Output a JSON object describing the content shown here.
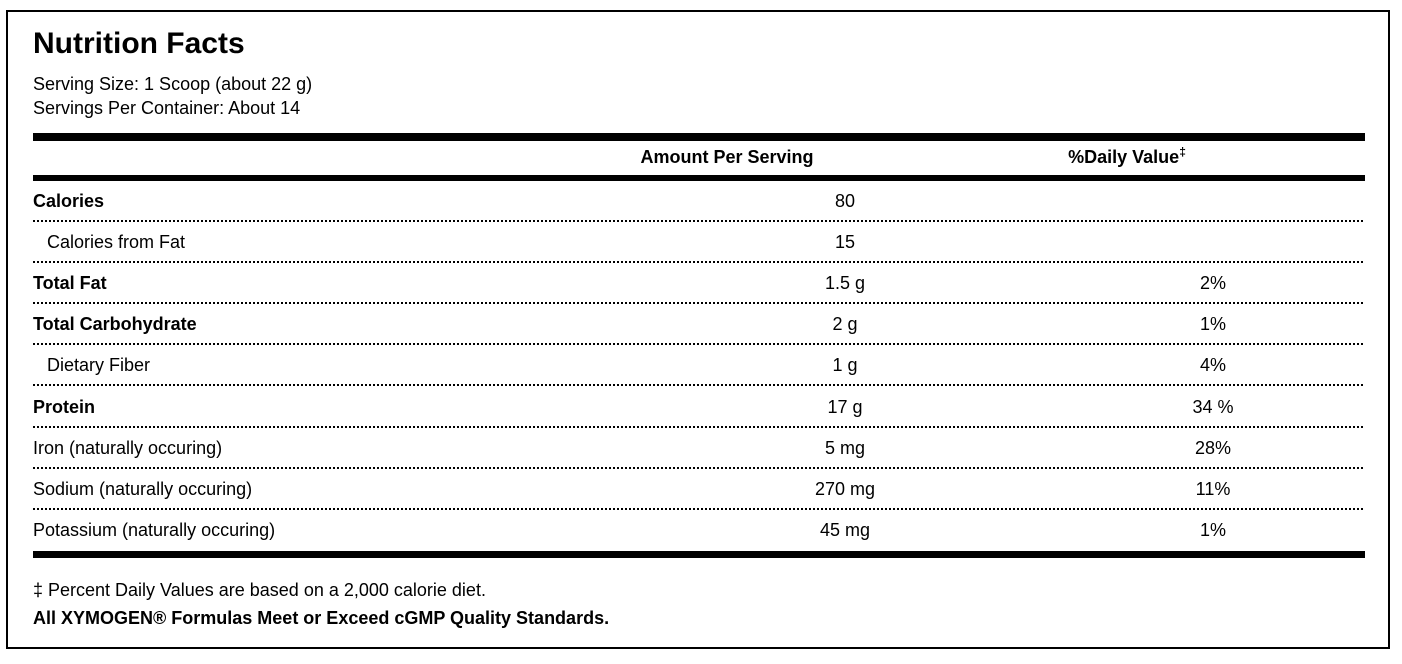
{
  "label": {
    "title": "Nutrition Facts",
    "serving_size": "Serving Size: 1 Scoop (about 22 g)",
    "servings_per_container": "Servings Per Container: About 14",
    "columns": {
      "amount_header": "Amount Per Serving",
      "daily_value_header": "%Daily Value",
      "daily_value_mark": "‡"
    },
    "rows": [
      {
        "name": "Calories",
        "amount": "80",
        "dv": "",
        "bold": true,
        "indent": false
      },
      {
        "name": "Calories from Fat",
        "amount": "15",
        "dv": "",
        "bold": false,
        "indent": true
      },
      {
        "name": "Total Fat",
        "amount": "1.5 g",
        "dv": "2%",
        "bold": true,
        "indent": false
      },
      {
        "name": "Total Carbohydrate",
        "amount": "2 g",
        "dv": "1%",
        "bold": true,
        "indent": false
      },
      {
        "name": "Dietary Fiber",
        "amount": "1 g",
        "dv": "4%",
        "bold": false,
        "indent": true
      },
      {
        "name": "Protein",
        "amount": "17 g",
        "dv": "34 %",
        "bold": true,
        "indent": false
      },
      {
        "name": "Iron (naturally occuring)",
        "amount": "5 mg",
        "dv": "28%",
        "bold": false,
        "indent": false
      },
      {
        "name": "Sodium (naturally occuring)",
        "amount": "270 mg",
        "dv": "11%",
        "bold": false,
        "indent": false
      },
      {
        "name": "Potassium (naturally occuring)",
        "amount": "45 mg",
        "dv": "1%",
        "bold": false,
        "indent": false
      }
    ],
    "footnotes": {
      "daily_value_note": "‡ Percent Daily Values are based on a 2,000 calorie diet.",
      "quality_note": "All XYMOGEN® Formulas Meet or Exceed cGMP Quality Standards."
    },
    "colors": {
      "text": "#000000",
      "background": "#ffffff",
      "border": "#000000"
    }
  }
}
